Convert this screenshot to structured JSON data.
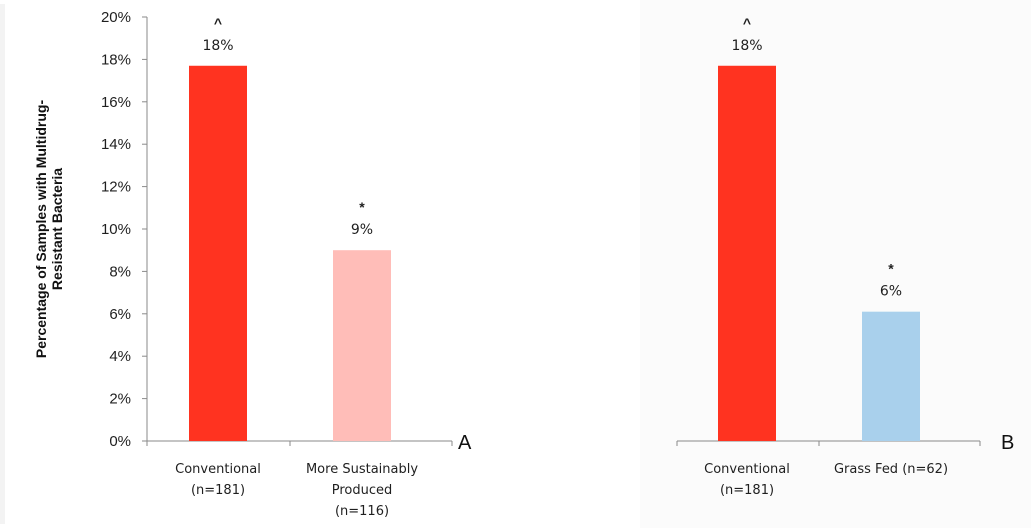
{
  "chart_data": [
    {
      "type": "bar",
      "panel": "A",
      "ylabel_lines": [
        "Percentage of Samples with Multidrug-",
        "Resistant Bacteria"
      ],
      "ylim": [
        0,
        20
      ],
      "yticks": [
        "0%",
        "2%",
        "4%",
        "6%",
        "8%",
        "10%",
        "12%",
        "14%",
        "16%",
        "18%",
        "20%"
      ],
      "categories": [
        {
          "lines": [
            "Conventional",
            "(n=181)"
          ]
        },
        {
          "lines": [
            "More Sustainably",
            "Produced",
            "(n=116)"
          ]
        }
      ],
      "values": [
        17.7,
        9.0
      ],
      "data_labels": [
        "18%",
        "9%"
      ],
      "markers": [
        "^",
        "*"
      ],
      "colors": [
        "#ff3320",
        "#ffbdb8"
      ],
      "grid": false
    },
    {
      "type": "bar",
      "panel": "B",
      "ylim": [
        0,
        20
      ],
      "categories": [
        {
          "lines": [
            "Conventional",
            "(n=181)"
          ]
        },
        {
          "lines": [
            "Grass Fed (n=62)"
          ]
        }
      ],
      "values": [
        17.7,
        6.1
      ],
      "data_labels": [
        "18%",
        "6%"
      ],
      "markers": [
        "^",
        "*"
      ],
      "colors": [
        "#ff3320",
        "#a9d0ec"
      ],
      "grid": false
    }
  ]
}
